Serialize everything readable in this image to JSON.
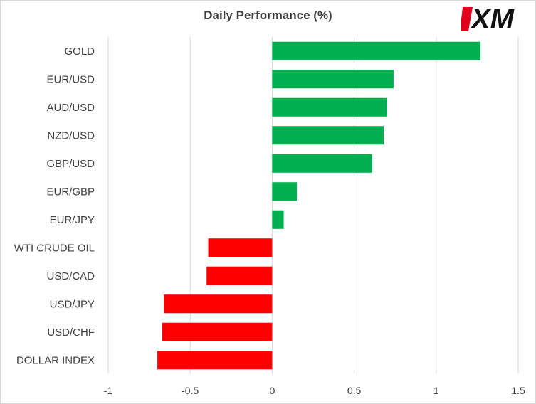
{
  "chart_data": {
    "type": "bar",
    "orientation": "horizontal",
    "title": "Daily Performance (%)",
    "categories": [
      "GOLD",
      "EUR/USD",
      "AUD/USD",
      "NZD/USD",
      "GBP/USD",
      "EUR/GBP",
      "EUR/JPY",
      "WTI CRUDE OIL",
      "USD/CAD",
      "USD/JPY",
      "USD/CHF",
      "DOLLAR INDEX"
    ],
    "values": [
      1.27,
      0.74,
      0.7,
      0.68,
      0.61,
      0.15,
      0.07,
      -0.39,
      -0.4,
      -0.66,
      -0.67,
      -0.7
    ],
    "xlim": [
      -1,
      1.5
    ],
    "xticks": [
      -1,
      -0.5,
      0,
      0.5,
      1,
      1.5
    ],
    "xtick_labels": [
      "-1",
      "-0.5",
      "0",
      "0.5",
      "1",
      "1.5"
    ],
    "grid": "vertical",
    "legend": "none",
    "colors": {
      "positive": "#00b050",
      "negative": "#ff0000",
      "grid": "#d9d9d9",
      "text": "#404040"
    }
  },
  "logo": {
    "text": "XM",
    "color": "#e0001b"
  }
}
